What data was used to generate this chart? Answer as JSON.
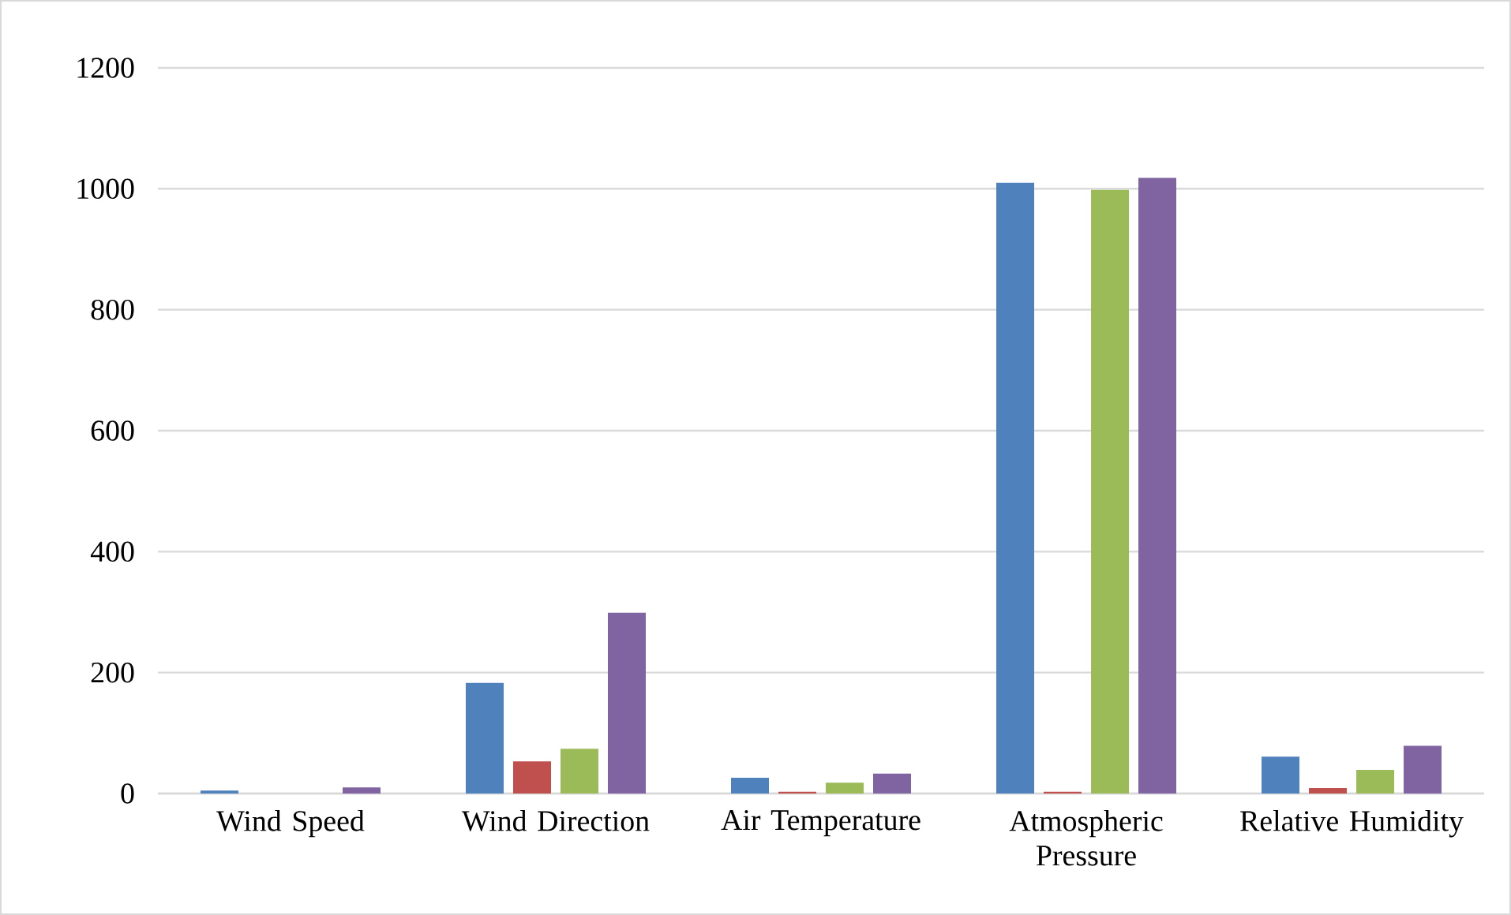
{
  "chart_data": {
    "type": "bar",
    "categories": [
      "Wind Speed",
      "Wind Direction",
      "Air Temperature",
      "Atmospheric Pressure",
      "Relative Humidity"
    ],
    "series": [
      {
        "color": "#4f81bd",
        "values": [
          5,
          183,
          26,
          1010,
          61
        ]
      },
      {
        "color": "#c0504d",
        "values": [
          0,
          53,
          3,
          3,
          9
        ]
      },
      {
        "color": "#9bbb59",
        "values": [
          0,
          74,
          18,
          998,
          39
        ]
      },
      {
        "color": "#8064a2",
        "values": [
          10,
          299,
          33,
          1018,
          79
        ]
      }
    ],
    "ylim": [
      0,
      1200
    ],
    "yticks": [
      0,
      200,
      400,
      600,
      800,
      1000,
      1200
    ],
    "grid": "y",
    "legend": false
  }
}
